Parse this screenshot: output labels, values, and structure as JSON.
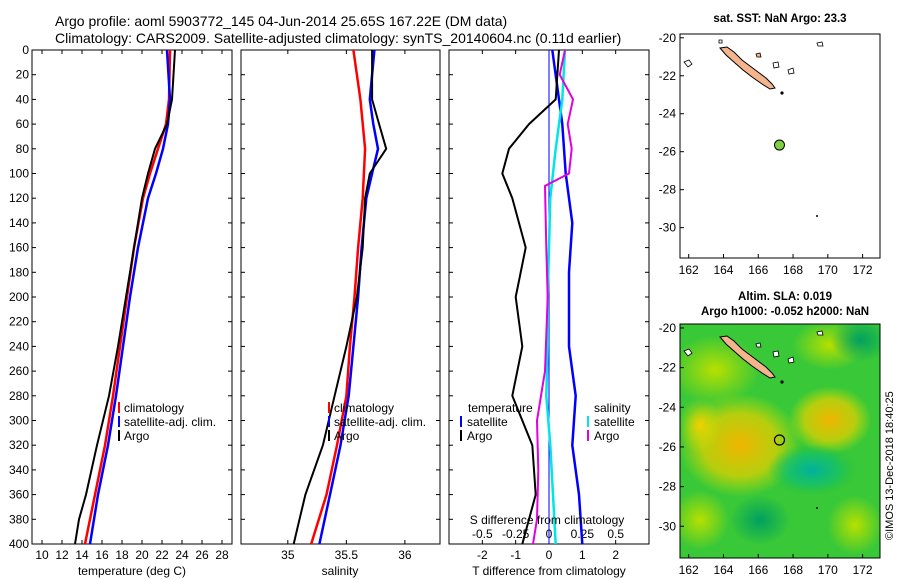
{
  "title": {
    "line1": "Argo profile: aoml 5903772_145 04-Jun-2014 25.65S 167.22E (DM data)",
    "line2": "Climatology: CARS2009. Satellite-adjusted climatology: synTS_20140604.nc (0.11d earlier)"
  },
  "watermark": "©IMOS 13-Dec-2018 18:40:25",
  "colors": {
    "climatology": "#ff0000",
    "satellite": "#0000ff",
    "argo": "#000000",
    "sal_sat": "#00e5e5",
    "sal_argo": "#e000e0"
  },
  "chart_data": [
    {
      "name": "temperature",
      "type": "line",
      "xlabel": "temperature (deg C)",
      "ylabel": "",
      "xlim": [
        9,
        29
      ],
      "ylim": [
        400,
        0
      ],
      "xticks": [
        10,
        12,
        14,
        16,
        18,
        20,
        22,
        24,
        26,
        28
      ],
      "yticks": [
        0,
        20,
        40,
        60,
        80,
        100,
        120,
        140,
        160,
        180,
        200,
        220,
        240,
        260,
        280,
        300,
        320,
        340,
        360,
        380,
        400
      ],
      "legend": [
        "climatology",
        "satellite-adj. clim.",
        "Argo"
      ],
      "series": [
        {
          "name": "climatology",
          "color": "#ff0000",
          "depth": [
            0,
            40,
            60,
            80,
            100,
            120,
            160,
            200,
            240,
            280,
            320,
            360,
            400
          ],
          "values": [
            22.8,
            22.7,
            22.4,
            21.6,
            20.8,
            20.1,
            19.2,
            18.5,
            17.8,
            17.1,
            16.3,
            15.3,
            14.3
          ]
        },
        {
          "name": "satellite-adj. clim.",
          "color": "#0000ff",
          "depth": [
            0,
            40,
            60,
            80,
            100,
            120,
            160,
            200,
            240,
            280,
            320,
            360,
            400
          ],
          "values": [
            22.5,
            22.8,
            22.6,
            22.1,
            21.4,
            20.6,
            19.6,
            18.8,
            18.1,
            17.4,
            16.6,
            15.6,
            14.8
          ]
        },
        {
          "name": "Argo",
          "color": "#000000",
          "depth": [
            0,
            40,
            60,
            80,
            100,
            120,
            160,
            200,
            240,
            280,
            320,
            360,
            380,
            400
          ],
          "values": [
            23.3,
            23.0,
            22.5,
            21.3,
            20.6,
            20.0,
            19.2,
            18.4,
            17.6,
            16.7,
            15.5,
            14.4,
            13.7,
            13.3
          ]
        }
      ]
    },
    {
      "name": "salinity",
      "type": "line",
      "xlabel": "salinity",
      "xlim": [
        34.6,
        36.3
      ],
      "ylim": [
        400,
        0
      ],
      "xticks": [
        35,
        35.5,
        36
      ],
      "xtick_labels": [
        "35",
        "35.5",
        "36"
      ],
      "legend": [
        "climatology",
        "satellite-adj. clim.",
        "Argo"
      ],
      "series": [
        {
          "name": "climatology",
          "color": "#ff0000",
          "depth": [
            0,
            40,
            80,
            120,
            160,
            200,
            240,
            280,
            320,
            360,
            400
          ],
          "values": [
            35.56,
            35.62,
            35.66,
            35.64,
            35.6,
            35.57,
            35.53,
            35.5,
            35.42,
            35.33,
            35.2
          ]
        },
        {
          "name": "satellite-adj. clim.",
          "color": "#0000ff",
          "depth": [
            0,
            40,
            60,
            80,
            100,
            120,
            160,
            200,
            240,
            280,
            320,
            360,
            400
          ],
          "values": [
            35.74,
            35.7,
            35.73,
            35.77,
            35.72,
            35.67,
            35.63,
            35.6,
            35.56,
            35.52,
            35.45,
            35.36,
            35.27
          ]
        },
        {
          "name": "Argo",
          "color": "#000000",
          "depth": [
            0,
            40,
            60,
            80,
            100,
            120,
            160,
            200,
            240,
            280,
            320,
            360,
            380,
            400
          ],
          "values": [
            35.72,
            35.72,
            35.78,
            35.84,
            35.7,
            35.66,
            35.64,
            35.59,
            35.5,
            35.4,
            35.3,
            35.15,
            35.1,
            35.05
          ]
        }
      ]
    },
    {
      "name": "difference",
      "type": "line",
      "xlabel": "T difference from climatology",
      "xlim": [
        -3,
        3
      ],
      "ylim": [
        400,
        0
      ],
      "xticks": [
        -2,
        -1,
        0,
        1,
        2
      ],
      "xtick_labels": [
        "-2",
        "-1",
        "0",
        "1",
        "2"
      ],
      "top_axis_label": "S difference from climatology",
      "top_ticks": [
        -0.5,
        -0.25,
        0,
        0.25,
        0.5
      ],
      "top_tick_labels": [
        "-0.5",
        "-0.25",
        "0",
        "0.25",
        "0.5"
      ],
      "legend_groups": [
        {
          "heading": "temperature",
          "items": [
            "satellite",
            "Argo"
          ]
        },
        {
          "heading": "salinity",
          "items": [
            "satellite",
            "Argo"
          ]
        }
      ],
      "series": [
        {
          "name": "temperature satellite",
          "color": "#0000ff",
          "depth": [
            0,
            60,
            100,
            140,
            180,
            240,
            280,
            320,
            360,
            400
          ],
          "values": [
            0.1,
            0.4,
            0.5,
            0.7,
            0.6,
            0.6,
            0.8,
            0.7,
            0.9,
            1.0
          ]
        },
        {
          "name": "temperature Argo",
          "color": "#000000",
          "depth": [
            0,
            40,
            60,
            80,
            100,
            120,
            160,
            200,
            240,
            280,
            320,
            360,
            400
          ],
          "values": [
            0.3,
            0.2,
            -0.6,
            -1.2,
            -1.4,
            -1.1,
            -0.7,
            -1.0,
            -0.8,
            -1.1,
            -0.5,
            -0.4,
            -0.8
          ]
        },
        {
          "name": "salinity satellite",
          "color": "#00e5e5",
          "depth": [
            0,
            40,
            80,
            120,
            160,
            200,
            240,
            280,
            320,
            360,
            400
          ],
          "values": [
            0.12,
            0.1,
            0.05,
            0.01,
            0.0,
            -0.01,
            -0.01,
            -0.02,
            0.01,
            0.03,
            0.05
          ]
        },
        {
          "name": "salinity Argo",
          "color": "#e000e0",
          "depth": [
            0,
            20,
            40,
            60,
            80,
            100,
            110,
            160,
            200,
            260,
            300,
            340,
            380,
            400
          ],
          "values": [
            0.12,
            0.08,
            0.18,
            0.14,
            0.17,
            0.15,
            -0.03,
            -0.02,
            -0.01,
            -0.03,
            -0.09,
            -0.08,
            -0.09,
            -0.12
          ]
        }
      ]
    },
    {
      "name": "sst-map",
      "type": "map",
      "title": "sat. SST: NaN Argo: 23.3",
      "xlim": [
        161.5,
        173
      ],
      "ylim": [
        -31.6,
        -19.8
      ],
      "xticks": [
        162,
        164,
        166,
        168,
        170,
        172
      ],
      "yticks": [
        -20,
        -22,
        -24,
        -26,
        -28,
        -30
      ],
      "profile_location": {
        "lon": 167.22,
        "lat": -25.65,
        "marker": "filled"
      }
    },
    {
      "name": "sla-map",
      "type": "map",
      "title_line1": "Altim. SLA: 0.019",
      "title_line2": "Argo h1000: -0.052 h2000: NaN",
      "xlim": [
        161.5,
        173
      ],
      "ylim": [
        -31.6,
        -19.8
      ],
      "xticks": [
        162,
        164,
        166,
        168,
        170,
        172
      ],
      "yticks": [
        -20,
        -22,
        -24,
        -26,
        -28,
        -30
      ],
      "profile_location": {
        "lon": 167.22,
        "lat": -25.65,
        "marker": "open"
      }
    }
  ]
}
